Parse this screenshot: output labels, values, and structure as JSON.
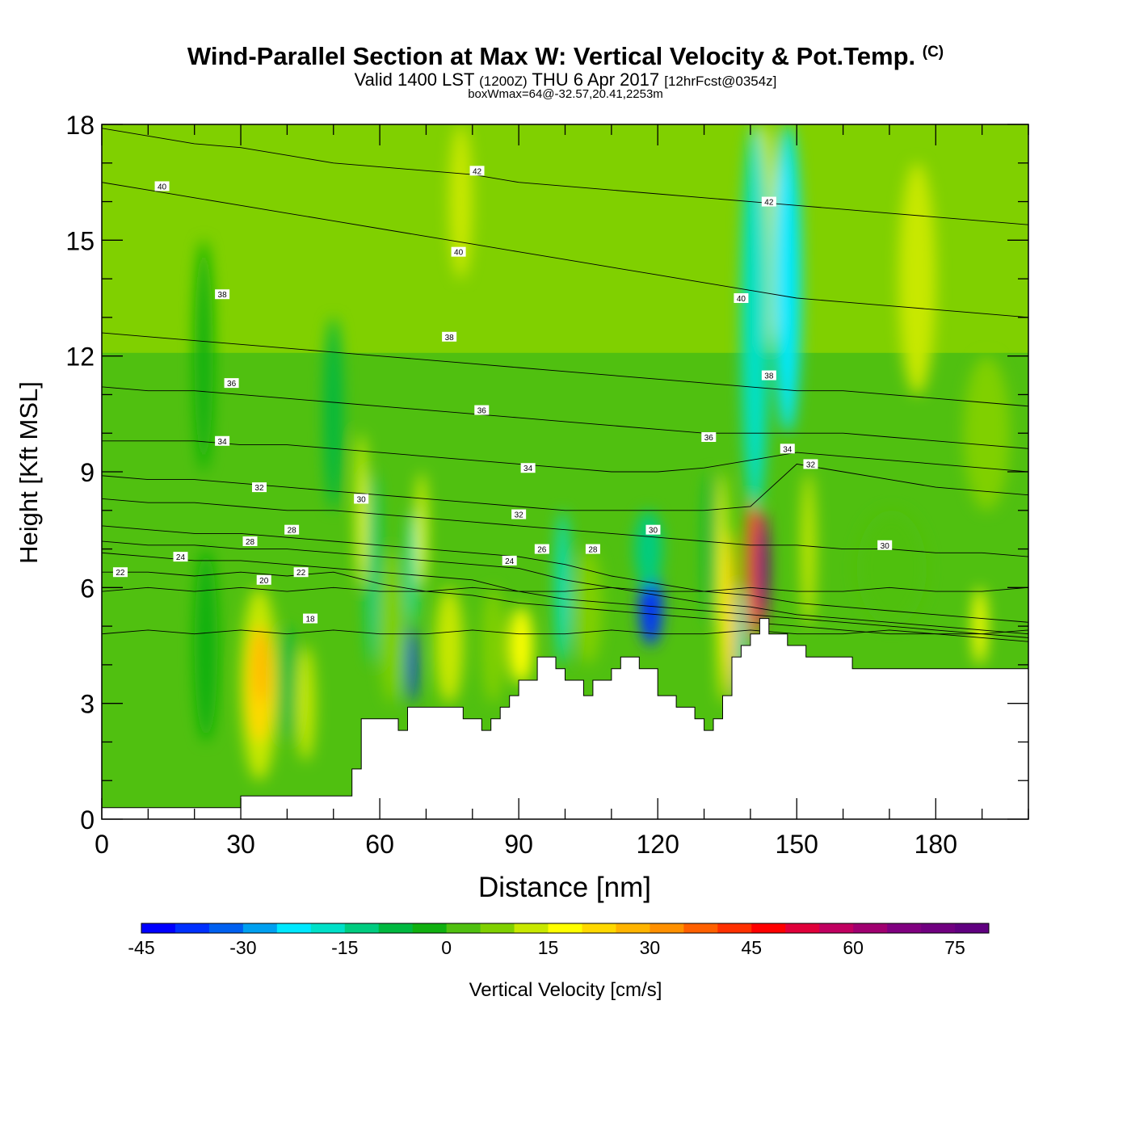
{
  "header": {
    "title_main": "Wind-Parallel Section at Max W: Vertical Velocity & Pot.Temp.",
    "title_mark": "(C)",
    "subtitle_valid": "Valid 1400 LST",
    "subtitle_z": "(1200Z)",
    "subtitle_date": "THU 6 Apr 2017",
    "subtitle_fcst": "[12hrFcst@0354z]",
    "subtitle_box": "boxWmax=64@-32.57,20.41,2253m"
  },
  "chart_data": {
    "type": "heatmap",
    "xlabel": "Distance [nm]",
    "ylabel": "Height [Kft MSL]",
    "xlim": [
      0,
      200
    ],
    "ylim": [
      0,
      18
    ],
    "xticks": [
      "0",
      "30",
      "60",
      "90",
      "120",
      "150",
      "180"
    ],
    "yticks": [
      "0",
      "3",
      "6",
      "9",
      "12",
      "15",
      "18"
    ],
    "colorbar": {
      "label": "Vertical Velocity [cm/s]",
      "min": -45,
      "max": 80,
      "step": 5,
      "tick_labels": [
        "-45",
        "-30",
        "-15",
        "0",
        "15",
        "30",
        "45",
        "60",
        "75"
      ],
      "colors": [
        "#0000ff",
        "#0030ff",
        "#0060f0",
        "#00a0f0",
        "#00e8ff",
        "#00e0c8",
        "#00cc80",
        "#00b840",
        "#10b010",
        "#50c010",
        "#80d000",
        "#c8e800",
        "#ffff00",
        "#ffd800",
        "#ffb400",
        "#ff9000",
        "#ff6000",
        "#ff3000",
        "#ff0000",
        "#e0003a",
        "#c00060",
        "#a00070",
        "#800080",
        "#700080",
        "#600080"
      ]
    },
    "terrain": {
      "x": [
        0,
        30,
        30,
        54,
        54,
        56,
        56,
        62,
        62,
        64,
        64,
        66,
        66,
        78,
        78,
        82,
        82,
        84,
        84,
        86,
        86,
        88,
        88,
        90,
        90,
        94,
        94,
        98,
        98,
        100,
        100,
        104,
        104,
        106,
        106,
        110,
        110,
        112,
        112,
        116,
        116,
        120,
        120,
        124,
        124,
        128,
        128,
        130,
        130,
        132,
        132,
        134,
        134,
        136,
        136,
        138,
        138,
        140,
        140,
        142,
        142,
        144,
        144,
        148,
        148,
        152,
        152,
        160,
        160,
        162,
        162,
        174,
        174,
        192,
        192,
        200
      ],
      "y": [
        0.3,
        0.3,
        0.6,
        0.6,
        1.3,
        1.3,
        2.6,
        2.6,
        2.6,
        2.6,
        2.3,
        2.3,
        2.9,
        2.9,
        2.6,
        2.6,
        2.3,
        2.3,
        2.6,
        2.6,
        2.9,
        2.9,
        3.2,
        3.2,
        3.6,
        3.6,
        4.2,
        4.2,
        3.9,
        3.9,
        3.6,
        3.6,
        3.2,
        3.2,
        3.6,
        3.6,
        3.9,
        3.9,
        4.2,
        4.2,
        3.9,
        3.9,
        3.2,
        3.2,
        2.9,
        2.9,
        2.6,
        2.6,
        2.3,
        2.3,
        2.6,
        2.6,
        3.2,
        3.2,
        4.2,
        4.2,
        4.5,
        4.5,
        4.8,
        4.8,
        5.2,
        5.2,
        4.8,
        4.8,
        4.5,
        4.5,
        4.2,
        4.2,
        4.2,
        4.2,
        3.9,
        3.9,
        3.9,
        3.9,
        3.9,
        3.9
      ]
    },
    "field_cells": [
      {
        "x": 0,
        "y": 0.3,
        "w": 200,
        "h": 17.7,
        "v": 2
      },
      {
        "x": 0,
        "y": 12.5,
        "w": 200,
        "h": 5.5,
        "v": 5
      },
      {
        "x": 75,
        "y": 14,
        "w": 5,
        "h": 4,
        "v": 10
      },
      {
        "x": 140,
        "y": 12,
        "w": 6,
        "h": 6,
        "v": 12
      },
      {
        "x": 172,
        "y": 11,
        "w": 8,
        "h": 6,
        "v": 10
      },
      {
        "x": 20,
        "y": 9,
        "w": 4,
        "h": 6,
        "v": -4
      },
      {
        "x": 48,
        "y": 8,
        "w": 4,
        "h": 5,
        "v": -6
      },
      {
        "x": 30,
        "y": 1,
        "w": 8,
        "h": 5,
        "v": 12
      },
      {
        "x": 31,
        "y": 2,
        "w": 6,
        "h": 3,
        "v": 22
      },
      {
        "x": 33,
        "y": 3,
        "w": 3,
        "h": 2,
        "v": 28
      },
      {
        "x": 38,
        "y": 2,
        "w": 4,
        "h": 3,
        "v": -10
      },
      {
        "x": 42,
        "y": 1.5,
        "w": 4,
        "h": 3,
        "v": 12
      },
      {
        "x": 20,
        "y": 2,
        "w": 5,
        "h": 5,
        "v": -3
      },
      {
        "x": 55,
        "y": 6,
        "w": 2,
        "h": 4,
        "v": 18
      },
      {
        "x": 57,
        "y": 4,
        "w": 3,
        "h": 5,
        "v": -15
      },
      {
        "x": 60,
        "y": 3,
        "w": 5,
        "h": 4,
        "v": 8
      },
      {
        "x": 66,
        "y": 3,
        "w": 2,
        "h": 2,
        "v": -40
      },
      {
        "x": 66,
        "y": 5,
        "w": 2,
        "h": 3,
        "v": -18
      },
      {
        "x": 68,
        "y": 6,
        "w": 2,
        "h": 3,
        "v": 15
      },
      {
        "x": 72,
        "y": 3,
        "w": 6,
        "h": 3,
        "v": 10
      },
      {
        "x": 82,
        "y": 3,
        "w": 5,
        "h": 3,
        "v": 8
      },
      {
        "x": 88,
        "y": 3.5,
        "w": 5,
        "h": 2,
        "v": 15
      },
      {
        "x": 98,
        "y": 4,
        "w": 3,
        "h": 4,
        "v": -20
      },
      {
        "x": 102,
        "y": 4,
        "w": 6,
        "h": 3,
        "v": 8
      },
      {
        "x": 116,
        "y": 4.5,
        "w": 5,
        "h": 2,
        "v": -40
      },
      {
        "x": 115,
        "y": 6,
        "w": 6,
        "h": 2,
        "v": -12
      },
      {
        "x": 130,
        "y": 5,
        "w": 3,
        "h": 4,
        "v": -10
      },
      {
        "x": 133,
        "y": 3,
        "w": 2,
        "h": 6,
        "v": 18
      },
      {
        "x": 135,
        "y": 3,
        "w": 2,
        "h": 4.5,
        "v": 28
      },
      {
        "x": 137,
        "y": 3,
        "w": 2,
        "h": 3,
        "v": -20
      },
      {
        "x": 139,
        "y": 4.5,
        "w": 3,
        "h": 4,
        "v": 35
      },
      {
        "x": 141,
        "y": 5,
        "w": 3,
        "h": 3,
        "v": 60
      },
      {
        "x": 142,
        "y": 5.5,
        "w": 2,
        "h": 2,
        "v": 70
      },
      {
        "x": 138,
        "y": 8,
        "w": 6,
        "h": 10,
        "v": -16
      },
      {
        "x": 145,
        "y": 10,
        "w": 6,
        "h": 8,
        "v": -22
      },
      {
        "x": 151,
        "y": 5,
        "w": 3,
        "h": 4,
        "v": 12
      },
      {
        "x": 163,
        "y": 5,
        "w": 15,
        "h": 3,
        "v": 4
      },
      {
        "x": 188,
        "y": 4,
        "w": 3,
        "h": 2,
        "v": 15
      },
      {
        "x": 186,
        "y": 8,
        "w": 10,
        "h": 4,
        "v": 8
      }
    ],
    "isentropes": [
      {
        "label": "18",
        "y": [
          4.8,
          4.9,
          4.8,
          4.9,
          4.8,
          4.9,
          4.8,
          4.8,
          4.9,
          4.8,
          4.8,
          4.9,
          4.8,
          4.8,
          4.9,
          4.8,
          4.8,
          4.9,
          4.8,
          4.8,
          4.9
        ]
      },
      {
        "label": "20",
        "y": [
          5.9,
          6.0,
          5.9,
          6.0,
          5.9,
          6.0,
          5.9,
          5.9,
          6.0,
          5.9,
          5.9,
          6.0,
          5.9,
          5.9,
          6.0,
          5.9,
          5.9,
          6.0,
          5.9,
          5.9,
          6.0
        ]
      },
      {
        "label": "22",
        "y": [
          6.4,
          6.4,
          6.3,
          6.4,
          6.3,
          6.4,
          6.1,
          5.9,
          5.8,
          5.6,
          5.5,
          5.4,
          5.3,
          5.2,
          5.1,
          5.0,
          4.9,
          4.8,
          4.8,
          4.7,
          4.6
        ]
      },
      {
        "label": "24",
        "y": [
          6.9,
          6.8,
          6.7,
          6.7,
          6.6,
          6.5,
          6.4,
          6.3,
          6.2,
          5.9,
          5.7,
          5.6,
          5.5,
          5.4,
          5.3,
          5.2,
          5.1,
          5.0,
          4.9,
          4.8,
          4.7
        ]
      },
      {
        "label": "26",
        "y": [
          7.2,
          7.1,
          7.1,
          7.0,
          7.0,
          6.9,
          6.8,
          6.7,
          6.6,
          6.5,
          6.2,
          6.0,
          5.8,
          5.6,
          5.5,
          5.3,
          5.2,
          5.1,
          5.0,
          4.9,
          4.8
        ]
      },
      {
        "label": "28",
        "y": [
          7.6,
          7.5,
          7.4,
          7.4,
          7.3,
          7.2,
          7.1,
          7.0,
          6.9,
          6.8,
          6.6,
          6.3,
          6.1,
          5.9,
          5.8,
          5.6,
          5.5,
          5.4,
          5.3,
          5.2,
          5.1
        ]
      },
      {
        "label": "30",
        "y": [
          8.3,
          8.2,
          8.2,
          8.1,
          8.0,
          8.0,
          7.9,
          7.8,
          7.7,
          7.6,
          7.5,
          7.4,
          7.3,
          7.2,
          7.1,
          7.1,
          7.0,
          7.0,
          6.9,
          6.9,
          6.8
        ]
      },
      {
        "label": "32",
        "y": [
          8.9,
          8.8,
          8.8,
          8.7,
          8.6,
          8.5,
          8.4,
          8.3,
          8.2,
          8.1,
          8.0,
          8.0,
          8.0,
          8.0,
          8.1,
          9.2,
          9.0,
          8.8,
          8.6,
          8.5,
          8.4
        ]
      },
      {
        "label": "34",
        "y": [
          9.8,
          9.8,
          9.8,
          9.7,
          9.7,
          9.6,
          9.5,
          9.4,
          9.3,
          9.2,
          9.1,
          9.0,
          9.0,
          9.1,
          9.3,
          9.5,
          9.4,
          9.3,
          9.2,
          9.1,
          9.0
        ]
      },
      {
        "label": "36",
        "y": [
          11.2,
          11.1,
          11.1,
          11.0,
          10.9,
          10.8,
          10.7,
          10.6,
          10.5,
          10.4,
          10.3,
          10.2,
          10.1,
          10.0,
          10.0,
          10.0,
          10.0,
          9.9,
          9.8,
          9.7,
          9.6
        ]
      },
      {
        "label": "38",
        "y": [
          12.6,
          12.5,
          12.4,
          12.3,
          12.2,
          12.1,
          12.0,
          11.9,
          11.8,
          11.7,
          11.6,
          11.5,
          11.4,
          11.3,
          11.2,
          11.1,
          11.1,
          11.0,
          10.9,
          10.8,
          10.7
        ]
      },
      {
        "label": "40",
        "y": [
          16.5,
          16.3,
          16.1,
          15.9,
          15.7,
          15.5,
          15.3,
          15.1,
          14.9,
          14.7,
          14.5,
          14.3,
          14.1,
          13.9,
          13.7,
          13.5,
          13.4,
          13.3,
          13.2,
          13.1,
          13.0
        ]
      },
      {
        "label": "42",
        "y": [
          17.9,
          17.7,
          17.5,
          17.4,
          17.2,
          17.0,
          16.9,
          16.8,
          16.7,
          16.5,
          16.4,
          16.3,
          16.2,
          16.1,
          16.0,
          15.9,
          15.8,
          15.7,
          15.6,
          15.5,
          15.4
        ]
      }
    ],
    "isentrope_labels": [
      {
        "text": "40",
        "x": 13,
        "y": 16.4
      },
      {
        "text": "42",
        "x": 81,
        "y": 16.8
      },
      {
        "text": "42",
        "x": 144,
        "y": 16.0
      },
      {
        "text": "40",
        "x": 77,
        "y": 14.7
      },
      {
        "text": "38",
        "x": 26,
        "y": 13.6
      },
      {
        "text": "38",
        "x": 75,
        "y": 12.5
      },
      {
        "text": "40",
        "x": 138,
        "y": 13.5
      },
      {
        "text": "38",
        "x": 144,
        "y": 11.5
      },
      {
        "text": "36",
        "x": 28,
        "y": 11.3
      },
      {
        "text": "36",
        "x": 82,
        "y": 10.6
      },
      {
        "text": "36",
        "x": 131,
        "y": 9.9
      },
      {
        "text": "34",
        "x": 26,
        "y": 9.8
      },
      {
        "text": "34",
        "x": 92,
        "y": 9.1
      },
      {
        "text": "34",
        "x": 148,
        "y": 9.6
      },
      {
        "text": "32",
        "x": 34,
        "y": 8.6
      },
      {
        "text": "32",
        "x": 153,
        "y": 9.2
      },
      {
        "text": "30",
        "x": 56,
        "y": 8.3
      },
      {
        "text": "32",
        "x": 90,
        "y": 7.9
      },
      {
        "text": "30",
        "x": 119,
        "y": 7.5
      },
      {
        "text": "30",
        "x": 169,
        "y": 7.1
      },
      {
        "text": "28",
        "x": 41,
        "y": 7.5
      },
      {
        "text": "28",
        "x": 32,
        "y": 7.2
      },
      {
        "text": "26",
        "x": 95,
        "y": 7.0
      },
      {
        "text": "28",
        "x": 106,
        "y": 7.0
      },
      {
        "text": "24",
        "x": 17,
        "y": 6.8
      },
      {
        "text": "24",
        "x": 88,
        "y": 6.7
      },
      {
        "text": "22",
        "x": 4,
        "y": 6.4
      },
      {
        "text": "22",
        "x": 43,
        "y": 6.4
      },
      {
        "text": "20",
        "x": 35,
        "y": 6.2
      },
      {
        "text": "18",
        "x": 45,
        "y": 5.2
      }
    ]
  }
}
